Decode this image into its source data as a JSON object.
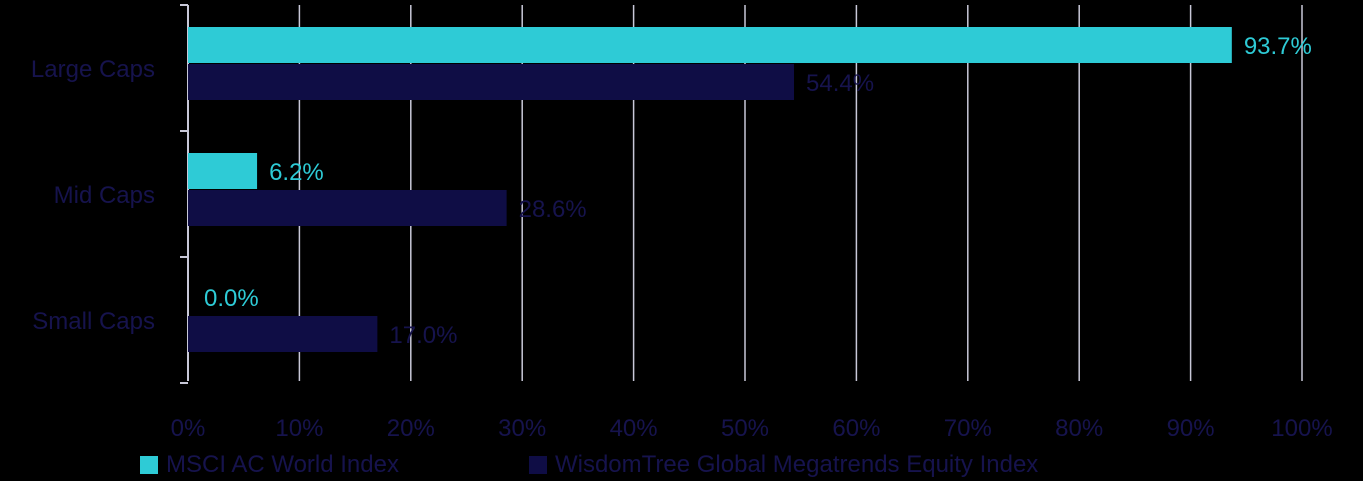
{
  "chart_data": {
    "type": "bar",
    "orientation": "horizontal",
    "categories": [
      "Large Caps",
      "Mid Caps",
      "Small Caps"
    ],
    "series": [
      {
        "name": "MSCI AC World Index",
        "values": [
          93.7,
          6.2,
          0.0
        ],
        "labels": [
          "93.7%",
          "6.2%",
          "0.0%"
        ],
        "color": "#2ecbd6"
      },
      {
        "name": "WisdomTree Global Megatrends Equity Index",
        "values": [
          54.4,
          28.6,
          17.0
        ],
        "labels": [
          "54.4%",
          "28.6%",
          "17.0%"
        ],
        "color": "#0f0d45"
      }
    ],
    "x_ticks": [
      "0%",
      "10%",
      "20%",
      "30%",
      "40%",
      "50%",
      "60%",
      "70%",
      "80%",
      "90%",
      "100%"
    ],
    "xlim": [
      0,
      100
    ],
    "grid": "vertical",
    "legend_position": "bottom",
    "text_color_dim": "#16134d",
    "gridline_color": "#c8c8d8"
  }
}
